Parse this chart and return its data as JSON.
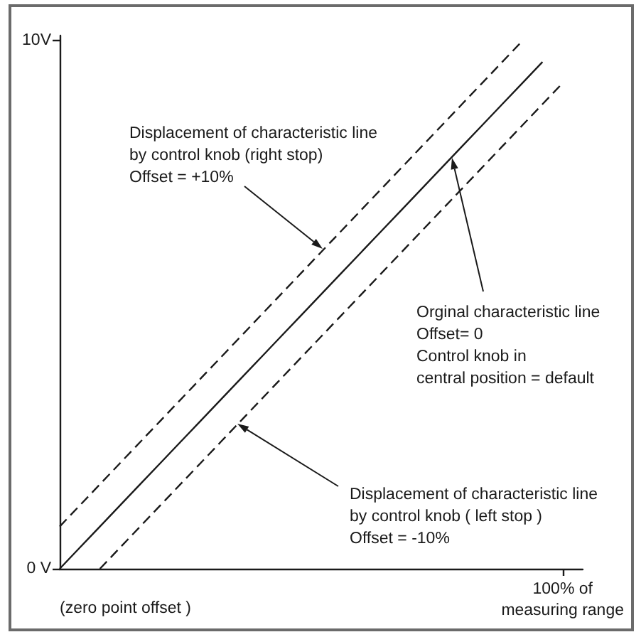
{
  "chart_data": {
    "type": "line",
    "categories": [
      null,
      null,
      null,
      null,
      null,
      null,
      null,
      null,
      null,
      null,
      null,
      null,
      null,
      null,
      null,
      null,
      null,
      null,
      null,
      null,
      null,
      null,
      null,
      null,
      null,
      "100% of\nmeasuring range",
      null
    ],
    "series": [
      {
        "values": [
          0.8,
          1.2,
          1.6,
          2.0,
          2.4,
          2.8,
          3.2,
          3.6,
          4.0,
          4.4,
          4.8,
          5.2,
          5.6,
          6.0,
          6.4,
          6.8,
          7.2,
          7.6,
          8.0,
          8.4,
          8.8,
          9.2,
          9.6,
          10.0,
          null,
          null,
          null
        ],
        "color": "#1a1a1a",
        "line_style": "dashed"
      },
      {
        "values": [
          0,
          0.4,
          0.8,
          1.2,
          1.6,
          2.0,
          2.4,
          2.8,
          3.2,
          3.6,
          4.0,
          4.4,
          4.8,
          5.2,
          5.6,
          6.0,
          6.4,
          6.8,
          7.2,
          7.6,
          8.0,
          8.4,
          8.8,
          9.2,
          9.6,
          null,
          null
        ],
        "color": "#1a1a1a",
        "line_style": "solid"
      },
      {
        "values": [
          null,
          null,
          0,
          0.4,
          0.8,
          1.2,
          1.6,
          2.0,
          2.4,
          2.8,
          3.2,
          3.6,
          4.0,
          4.4,
          4.8,
          5.2,
          5.6,
          6.0,
          6.4,
          6.8,
          7.2,
          7.6,
          8.0,
          8.4,
          8.8,
          9.2,
          null
        ],
        "color": "#1a1a1a",
        "line_style": "dashed"
      }
    ],
    "ylim": [
      0,
      10.1
    ],
    "yticks": [
      {
        "value": 0,
        "label": "0 V"
      },
      {
        "value": 10,
        "label": "10V"
      }
    ],
    "annotations": [
      "Displacement of characteristic line\nby control knob (right stop)\nOffset = +10%",
      "Orginal characteristic line\nOffset= 0\nControl knob in\ncentral position = default",
      "Displacement of characteristic line\nby control knob ( left stop )\nOffset = -10%",
      "(zero point offset )"
    ],
    "grid": false
  }
}
